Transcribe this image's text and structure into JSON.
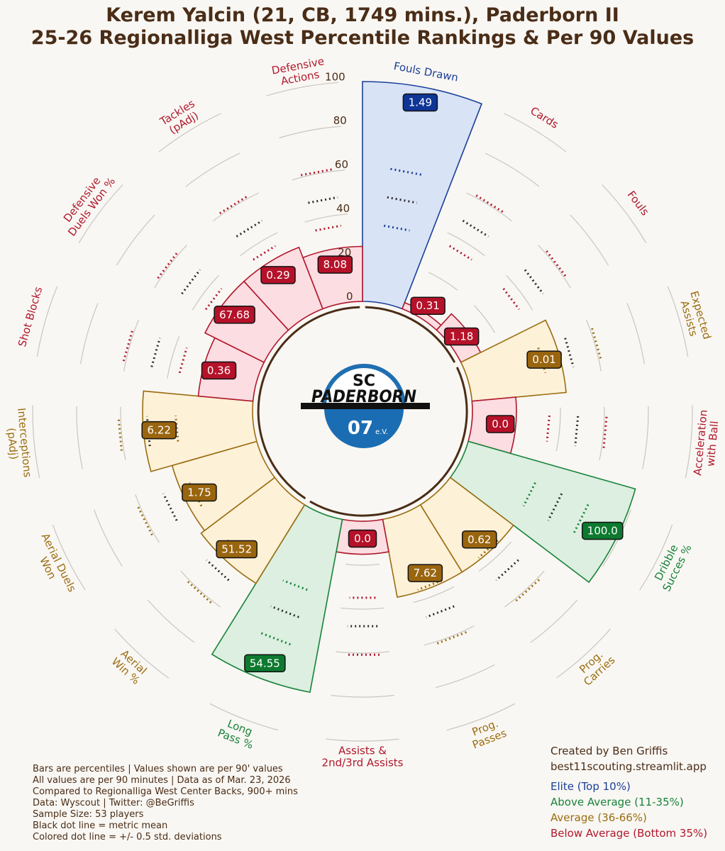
{
  "title": {
    "line1": "Kerem Yalcin (21, CB, 1749 mins.), Paderborn II",
    "line2": "25-26 Regionalliga West Percentile Rankings & Per 90 Values"
  },
  "logo": {
    "top": "SC",
    "middle": "PADERBORN",
    "bottom": "07",
    "suffix": "e.V."
  },
  "notes": [
    "Bars are percentiles | Values shown are per 90' values",
    "All values are per 90 minutes | Data as of Mar. 23, 2026",
    "Compared to Regionalliga West Center Backs, 900+ mins",
    "Data: Wyscout | Twitter: @BeGriffis",
    "Sample Size: 53 players",
    "Black dot line = metric mean",
    "Colored dot line = +/- 0.5 std. deviations"
  ],
  "credit": [
    "Created by Ben Griffis",
    "best11scouting.streamlit.app"
  ],
  "legend": [
    {
      "label": "Elite (Top 10%)",
      "color": "#1a3f99"
    },
    {
      "label": "Above Average (11-35%)",
      "color": "#17823a"
    },
    {
      "label": "Average (36-66%)",
      "color": "#9a6d11"
    },
    {
      "label": "Below Average (Bottom 35%)",
      "color": "#b0182c"
    }
  ],
  "colors": {
    "elite": {
      "edge": "#1a3f99",
      "fill": "#d8e3f6",
      "badge": "#0f3597"
    },
    "above": {
      "edge": "#17823a",
      "fill": "#dcefe0",
      "badge": "#0d7a2f"
    },
    "average": {
      "edge": "#9a6d11",
      "fill": "#fdf1d8",
      "badge": "#99650f"
    },
    "below": {
      "edge": "#b0182c",
      "fill": "#fbdde2",
      "badge": "#b5122a"
    }
  },
  "chart_data": {
    "type": "polar-bar",
    "radial_ticks": [
      "0",
      "20",
      "40",
      "60",
      "80",
      "100"
    ],
    "metrics": [
      {
        "label": "Fouls Drawn",
        "percentile": 100,
        "value": "1.49",
        "tier": "elite"
      },
      {
        "label": "Cards",
        "percentile": 3,
        "value": "0.31",
        "tier": "below"
      },
      {
        "label": "Fouls",
        "percentile": 10,
        "value": "1.18",
        "tier": "below"
      },
      {
        "label": "Expected\nAssists",
        "percentile": 43,
        "value": "0.01",
        "tier": "average"
      },
      {
        "label": "Acceleration\nwith Ball",
        "percentile": 20,
        "value": "0.0",
        "tier": "below"
      },
      {
        "label": "Dribble\nSucces %",
        "percentile": 79,
        "value": "100.0",
        "tier": "above"
      },
      {
        "label": "Prog.\nCarries",
        "percentile": 36,
        "value": "0.62",
        "tier": "average"
      },
      {
        "label": "Prog.\nPasses",
        "percentile": 36,
        "value": "7.62",
        "tier": "average"
      },
      {
        "label": "Assists &\n2nd/3rd Assists",
        "percentile": 15,
        "value": "0.0",
        "tier": "below"
      },
      {
        "label": "Long\nPass %",
        "percentile": 80,
        "value": "54.55",
        "tier": "above"
      },
      {
        "label": "Aerial\nWin %",
        "percentile": 42,
        "value": "51.52",
        "tier": "average"
      },
      {
        "label": "Aerial Duels\nWon",
        "percentile": 40,
        "value": "1.75",
        "tier": "average"
      },
      {
        "label": "Interceptions\n(pAdj)",
        "percentile": 50,
        "value": "6.22",
        "tier": "average"
      },
      {
        "label": "Shot Blocks",
        "percentile": 25,
        "value": "0.36",
        "tier": "below"
      },
      {
        "label": "Defensive\nDuels Won %",
        "percentile": 30,
        "value": "67.68",
        "tier": "below"
      },
      {
        "label": "Tackles\n(pAdj)",
        "percentile": 30,
        "value": "0.29",
        "tier": "below"
      },
      {
        "label": "Defensive\nActions",
        "percentile": 25,
        "value": "8.08",
        "tier": "below"
      }
    ]
  }
}
